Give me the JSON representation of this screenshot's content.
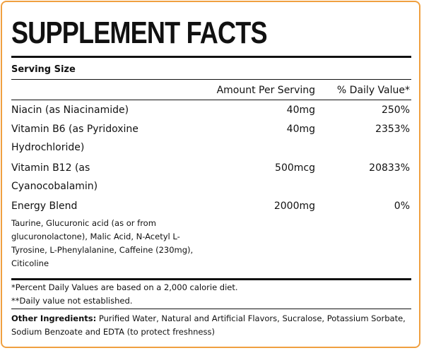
{
  "title": "SUPPLEMENT FACTS",
  "serving_size": "Serving Size",
  "columns": {
    "amount": "Amount Per Serving",
    "daily_value": "% Daily Value*"
  },
  "rows": [
    {
      "name": [
        "Niacin (as Niacinamide)"
      ],
      "amount": "40mg",
      "daily_value": "250%"
    },
    {
      "name": [
        "Vitamin B6 (as Pyridoxine",
        "Hydrochloride)"
      ],
      "amount": "40mg",
      "daily_value": "2353%"
    },
    {
      "name": [
        "Vitamin B12 (as",
        "Cyanocobalamin)"
      ],
      "amount": "500mcg",
      "daily_value": "20833%"
    },
    {
      "name": [
        "Energy Blend"
      ],
      "amount": "2000mg",
      "daily_value": "0%"
    }
  ],
  "blend_ingredients": "Taurine, Glucuronic acid (as or from glucuronolactone), Malic Acid, N-Acetyl L-Tyrosine, L-Phenylalanine, Caffeine (230mg), Citicoline",
  "footnotes": [
    "*Percent Daily Values are based on a 2,000 calorie diet.",
    "**Daily value not established."
  ],
  "other_ingredients": {
    "label": "Other Ingredients:",
    "text": "Purified Water, Natural and Artificial Flavors, Sucralose, Potassium Sorbate, Sodium Benzoate and EDTA (to protect freshness)"
  }
}
